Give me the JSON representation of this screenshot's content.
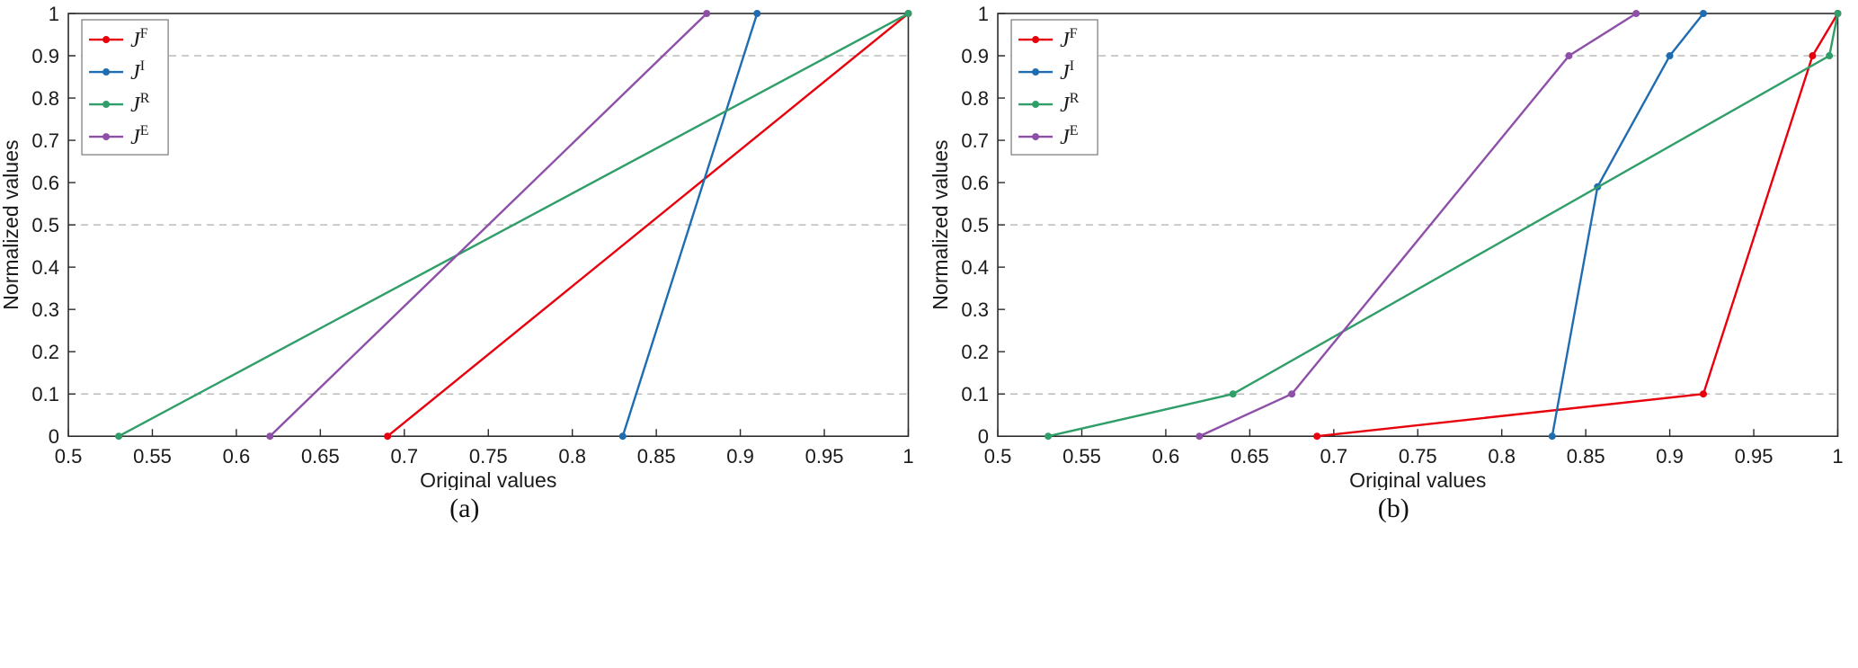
{
  "chart_data": [
    {
      "type": "line",
      "caption": "(a)",
      "xlabel": "Original values",
      "ylabel": "Normalized values",
      "xlim": [
        0.5,
        1
      ],
      "ylim": [
        0,
        1
      ],
      "xticks": [
        0.5,
        0.55,
        0.6,
        0.65,
        0.7,
        0.75,
        0.8,
        0.85,
        0.9,
        0.95,
        1
      ],
      "yticks": [
        0,
        0.1,
        0.2,
        0.3,
        0.4,
        0.5,
        0.6,
        0.7,
        0.8,
        0.9,
        1
      ],
      "dashed_gridlines_y": [
        0.1,
        0.5,
        0.9
      ],
      "grid_color": "#bbbbbb",
      "legend_position": "top-left",
      "series": [
        {
          "name": "J^F",
          "color": "#e8000d",
          "points": [
            [
              0.69,
              0
            ],
            [
              1,
              1
            ]
          ]
        },
        {
          "name": "J^I",
          "color": "#1f6cb0",
          "points": [
            [
              0.83,
              0
            ],
            [
              0.91,
              1
            ]
          ]
        },
        {
          "name": "J^R",
          "color": "#2f9e68",
          "points": [
            [
              0.53,
              0
            ],
            [
              1,
              1
            ]
          ]
        },
        {
          "name": "J^E",
          "color": "#8e4fa8",
          "points": [
            [
              0.62,
              0
            ],
            [
              0.88,
              1
            ]
          ]
        }
      ]
    },
    {
      "type": "line",
      "caption": "(b)",
      "xlabel": "Original values",
      "ylabel": "Normalized values",
      "xlim": [
        0.5,
        1
      ],
      "ylim": [
        0,
        1
      ],
      "xticks": [
        0.5,
        0.55,
        0.6,
        0.65,
        0.7,
        0.75,
        0.8,
        0.85,
        0.9,
        0.95,
        1
      ],
      "yticks": [
        0,
        0.1,
        0.2,
        0.3,
        0.4,
        0.5,
        0.6,
        0.7,
        0.8,
        0.9,
        1
      ],
      "dashed_gridlines_y": [
        0.1,
        0.5,
        0.9
      ],
      "grid_color": "#bbbbbb",
      "legend_position": "top-left",
      "series": [
        {
          "name": "J^F",
          "color": "#e8000d",
          "points": [
            [
              0.69,
              0
            ],
            [
              0.92,
              0.1
            ],
            [
              0.985,
              0.9
            ],
            [
              1,
              1
            ]
          ]
        },
        {
          "name": "J^I",
          "color": "#1f6cb0",
          "points": [
            [
              0.83,
              0
            ],
            [
              0.857,
              0.59
            ],
            [
              0.9,
              0.9
            ],
            [
              0.92,
              1
            ]
          ]
        },
        {
          "name": "J^R",
          "color": "#2f9e68",
          "points": [
            [
              0.53,
              0
            ],
            [
              0.64,
              0.1
            ],
            [
              0.995,
              0.9
            ],
            [
              1,
              1
            ]
          ]
        },
        {
          "name": "J^E",
          "color": "#8e4fa8",
          "points": [
            [
              0.62,
              0
            ],
            [
              0.675,
              0.1
            ],
            [
              0.84,
              0.9
            ],
            [
              0.88,
              1
            ]
          ]
        }
      ]
    }
  ]
}
